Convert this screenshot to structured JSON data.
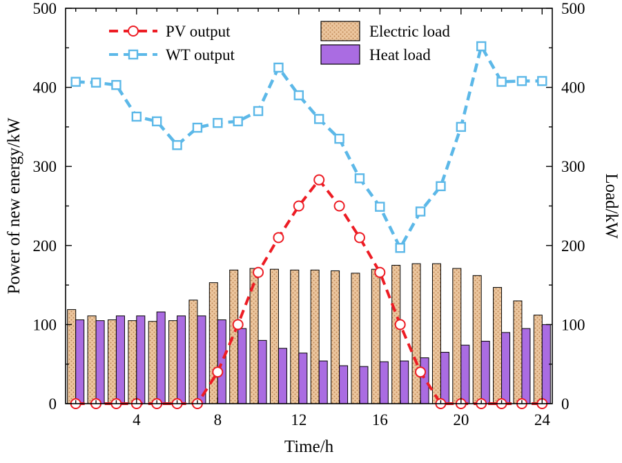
{
  "chart_data": {
    "type": "mixed",
    "xlabel": "Time/h",
    "ylabel_left": "Power of new energy/kW",
    "ylabel_right": "Load/kW",
    "xlim": [
      0.5,
      24.5
    ],
    "ylim": [
      0,
      500
    ],
    "xticks": [
      4,
      8,
      12,
      16,
      20,
      24
    ],
    "yticks": [
      0,
      100,
      200,
      300,
      400,
      500
    ],
    "grid": false,
    "legend_position": "top-inside",
    "x": [
      1,
      2,
      3,
      4,
      5,
      6,
      7,
      8,
      9,
      10,
      11,
      12,
      13,
      14,
      15,
      16,
      17,
      18,
      19,
      20,
      21,
      22,
      23,
      24
    ],
    "series": [
      {
        "name": "PV output",
        "type": "line",
        "marker": "circle",
        "line_style": "dashed",
        "color": "#ed1c24",
        "values": [
          0,
          0,
          0,
          0,
          0,
          0,
          0,
          40,
          100,
          166,
          210,
          250,
          283,
          250,
          210,
          166,
          100,
          40,
          0,
          0,
          0,
          0,
          0,
          0
        ]
      },
      {
        "name": "WT  output",
        "type": "line",
        "marker": "square",
        "line_style": "dashed",
        "color": "#5cb8e8",
        "values": [
          407,
          406,
          403,
          363,
          357,
          327,
          349,
          355,
          357,
          370,
          425,
          390,
          360,
          335,
          285,
          249,
          197,
          243,
          275,
          350,
          452,
          407,
          408,
          408
        ]
      },
      {
        "name": "Electric load",
        "type": "bar",
        "color": "#ecc69e",
        "hatch": "dots",
        "hatch_color": "#bf8756",
        "edge_color": "#000000",
        "values": [
          119,
          111,
          106,
          105,
          104,
          105,
          131,
          153,
          169,
          171,
          170,
          169,
          169,
          168,
          165,
          170,
          175,
          177,
          177,
          171,
          162,
          147,
          130,
          112
        ]
      },
      {
        "name": "Heat load",
        "type": "bar",
        "color": "#aa6ce2",
        "edge_color": "#000000",
        "values": [
          106,
          105,
          111,
          111,
          116,
          111,
          111,
          106,
          95,
          80,
          70,
          64,
          54,
          48,
          47,
          53,
          54,
          58,
          65,
          74,
          79,
          90,
          95,
          100
        ]
      }
    ]
  }
}
